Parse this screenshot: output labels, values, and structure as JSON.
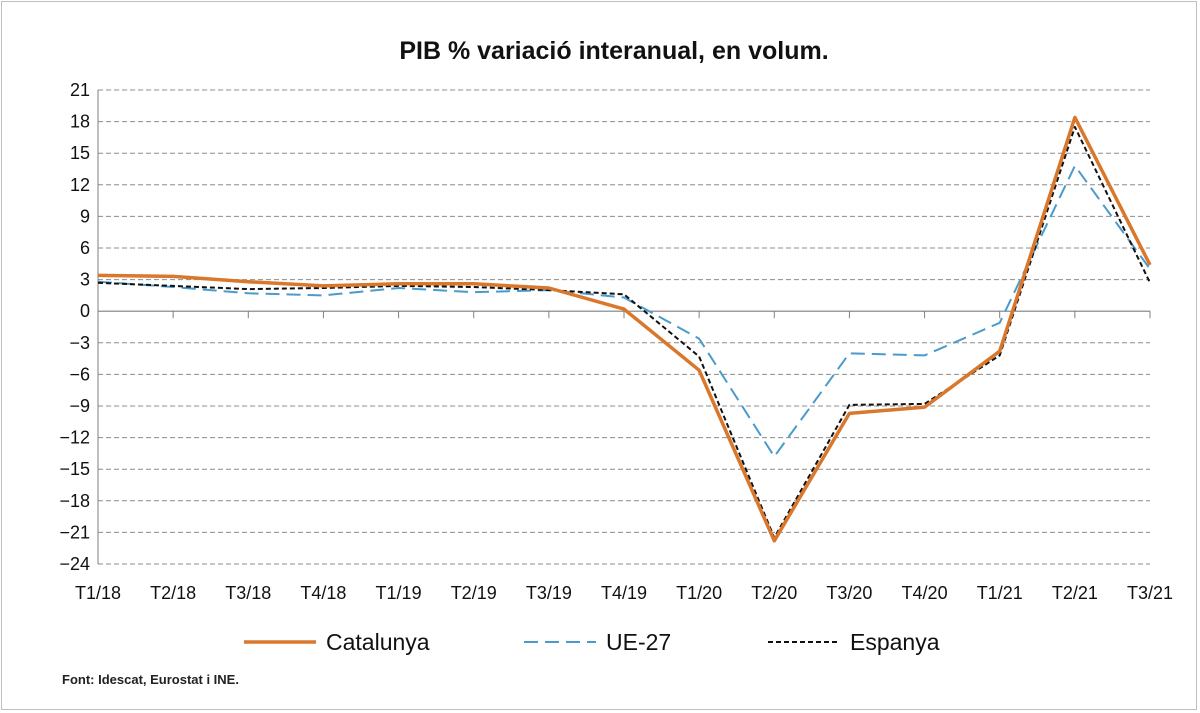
{
  "chart_data": {
    "type": "line",
    "title": "PIB % variació interanual, en volum.",
    "categories": [
      "T1/18",
      "T2/18",
      "T3/18",
      "T4/18",
      "T1/19",
      "T2/19",
      "T3/19",
      "T4/19",
      "T1/20",
      "T2/20",
      "T3/20",
      "T4/20",
      "T1/21",
      "T2/21",
      "T3/21"
    ],
    "yticks": [
      21,
      18,
      15,
      12,
      9,
      6,
      3,
      0,
      -3,
      -6,
      -9,
      -12,
      -15,
      -18,
      -21,
      -24
    ],
    "ylim": [
      -24,
      21
    ],
    "xlabel": "",
    "ylabel": "",
    "grid": "horizontal dashed",
    "legend_position": "bottom",
    "series": [
      {
        "name": "Catalunya",
        "color": "#d9782d",
        "style": "solid",
        "values": [
          3.4,
          3.3,
          2.8,
          2.4,
          2.6,
          2.6,
          2.2,
          0.2,
          -5.6,
          -21.8,
          -9.7,
          -9.1,
          -3.8,
          18.4,
          4.4
        ]
      },
      {
        "name": "UE-27",
        "color": "#4a9bc9",
        "style": "dashed",
        "values": [
          2.8,
          2.3,
          1.7,
          1.5,
          2.2,
          1.8,
          2.0,
          1.3,
          -2.6,
          -13.8,
          -4.0,
          -4.2,
          -1.1,
          13.8,
          4.0
        ]
      },
      {
        "name": "Espanya",
        "color": "#111111",
        "style": "dotted",
        "values": [
          2.7,
          2.4,
          2.1,
          2.2,
          2.4,
          2.3,
          2.0,
          1.6,
          -4.3,
          -21.5,
          -8.9,
          -8.8,
          -4.2,
          17.5,
          2.7
        ]
      }
    ]
  },
  "source": "Font: Idescat, Eurostat i INE."
}
